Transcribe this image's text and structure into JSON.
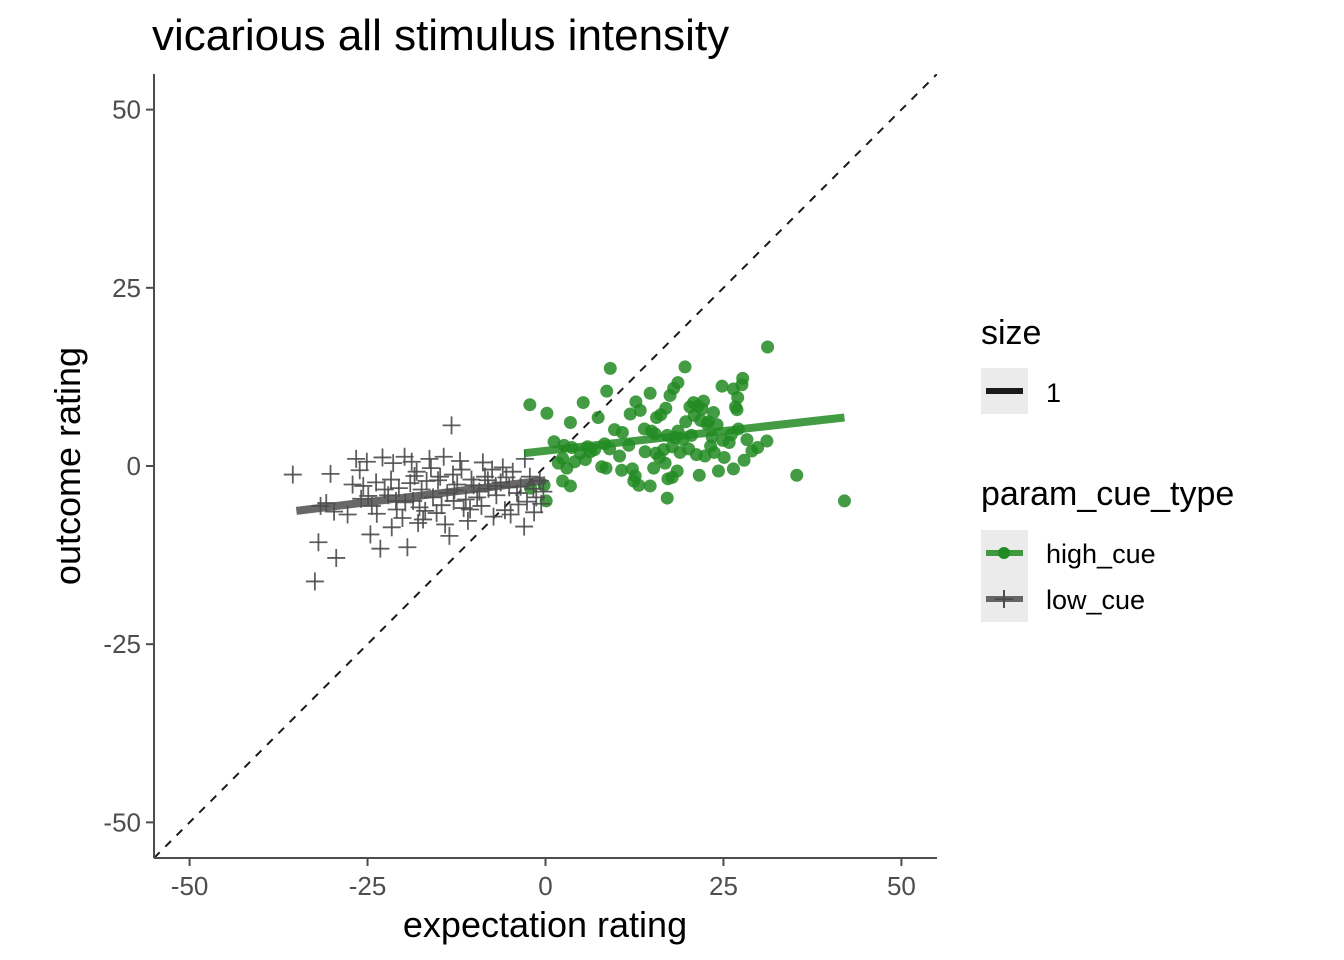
{
  "chart_data": {
    "type": "scatter",
    "title": "vicarious all stimulus intensity",
    "xlabel": "expectation rating",
    "ylabel": "outcome rating",
    "xlim": [
      -55,
      55
    ],
    "ylim": [
      -55,
      55
    ],
    "x_ticks": [
      -50,
      -25,
      0,
      25,
      50
    ],
    "y_ticks": [
      -50,
      -25,
      0,
      25,
      50
    ],
    "x_tick_labels": [
      "-50",
      "-25",
      "0",
      "25",
      "50"
    ],
    "y_tick_labels": [
      "-50",
      "-25",
      "0",
      "25",
      "50"
    ],
    "grid": false,
    "identity_line": true,
    "legend_position": "right",
    "legends": [
      {
        "title": "size",
        "entries": [
          {
            "label": "1",
            "color": "#1a1a1a"
          }
        ]
      },
      {
        "title": "param_cue_type",
        "entries": [
          {
            "label": "high_cue",
            "color": "#228B22",
            "marker": "circle"
          },
          {
            "label": "low_cue",
            "color": "#4d4d4d",
            "marker": "plus"
          }
        ]
      }
    ],
    "series": [
      {
        "name": "high_cue",
        "color": "#228B22",
        "marker": "circle",
        "fit_line": {
          "x": [
            -3,
            42
          ],
          "y": [
            1.8,
            6.8
          ]
        },
        "points": [
          [
            -2.2,
            8.6
          ],
          [
            0.2,
            7.4
          ],
          [
            3.5,
            6.1
          ],
          [
            5.3,
            8.9
          ],
          [
            8.6,
            10.5
          ],
          [
            9.1,
            13.7
          ],
          [
            11.9,
            7.3
          ],
          [
            12.7,
            9.0
          ],
          [
            13.3,
            7.8
          ],
          [
            14.7,
            10.2
          ],
          [
            14.9,
            4.9
          ],
          [
            15.6,
            6.8
          ],
          [
            16.2,
            7.2
          ],
          [
            16.9,
            8.1
          ],
          [
            17.5,
            9.9
          ],
          [
            18.0,
            10.9
          ],
          [
            18.6,
            11.7
          ],
          [
            19.6,
            13.9
          ],
          [
            20.3,
            8.3
          ],
          [
            20.8,
            8.9
          ],
          [
            21.4,
            8.4
          ],
          [
            22.2,
            9.1
          ],
          [
            22.9,
            6.2
          ],
          [
            23.6,
            7.5
          ],
          [
            24.1,
            5.8
          ],
          [
            24.8,
            11.2
          ],
          [
            26.4,
            10.8
          ],
          [
            27.0,
            9.6
          ],
          [
            26.7,
            8.3
          ],
          [
            27.6,
            11.4
          ],
          [
            27.7,
            12.3
          ],
          [
            31.2,
            16.7
          ],
          [
            29.8,
            2.6
          ],
          [
            31.1,
            3.5
          ],
          [
            35.3,
            -1.3
          ],
          [
            42.0,
            -4.9
          ],
          [
            7.4,
            6.8
          ],
          [
            9.7,
            5.1
          ],
          [
            10.8,
            4.7
          ],
          [
            13.9,
            5.2
          ],
          [
            15.4,
            4.5
          ],
          [
            17.1,
            4.3
          ],
          [
            18.6,
            4.9
          ],
          [
            19.7,
            6.2
          ],
          [
            20.9,
            7.1
          ],
          [
            21.8,
            6.4
          ],
          [
            22.7,
            5.9
          ],
          [
            23.4,
            4.1
          ],
          [
            24.9,
            3.6
          ],
          [
            26.1,
            4.4
          ],
          [
            27.1,
            5.2
          ],
          [
            28.3,
            3.7
          ],
          [
            29.0,
            2.1
          ],
          [
            5.9,
            2.7
          ],
          [
            6.9,
            2.3
          ],
          [
            8.3,
            3.1
          ],
          [
            9.0,
            2.4
          ],
          [
            11.7,
            2.9
          ],
          [
            14.0,
            2.0
          ],
          [
            15.5,
            1.8
          ],
          [
            16.6,
            2.3
          ],
          [
            17.8,
            2.7
          ],
          [
            18.9,
            1.9
          ],
          [
            20.1,
            2.4
          ],
          [
            21.2,
            1.6
          ],
          [
            22.4,
            1.4
          ],
          [
            23.7,
            1.9
          ],
          [
            25.1,
            1.2
          ],
          [
            27.9,
            0.8
          ],
          [
            1.2,
            3.4
          ],
          [
            2.6,
            2.9
          ],
          [
            3.7,
            2.6
          ],
          [
            4.9,
            1.8
          ],
          [
            2.4,
            1.1
          ],
          [
            4.1,
            0.6
          ],
          [
            5.6,
            0.9
          ],
          [
            1.8,
            0.4
          ],
          [
            3.0,
            -0.3
          ],
          [
            7.9,
            -0.1
          ],
          [
            8.5,
            -0.3
          ],
          [
            10.7,
            -0.6
          ],
          [
            12.2,
            -0.4
          ],
          [
            15.2,
            -0.3
          ],
          [
            16.8,
            0.4
          ],
          [
            18.5,
            -0.7
          ],
          [
            21.6,
            -1.3
          ],
          [
            24.3,
            -0.7
          ],
          [
            26.4,
            -0.4
          ],
          [
            12.6,
            -1.4
          ],
          [
            13.1,
            -2.7
          ],
          [
            14.7,
            -2.8
          ],
          [
            17.2,
            -1.8
          ],
          [
            17.8,
            -1.6
          ],
          [
            2.4,
            -2.1
          ],
          [
            3.5,
            -2.8
          ],
          [
            -2.1,
            -3.1
          ],
          [
            -0.2,
            -2.7
          ],
          [
            0.1,
            -4.9
          ],
          [
            12.4,
            -2.1
          ],
          [
            17.1,
            -4.5
          ],
          [
            6.3,
            2.0
          ],
          [
            10.4,
            1.4
          ],
          [
            19.3,
            3.7
          ],
          [
            23.2,
            2.8
          ],
          [
            25.8,
            3.3
          ],
          [
            20.5,
            4.3
          ],
          [
            16.0,
            1.2
          ],
          [
            22.0,
            8.0
          ],
          [
            18.2,
            4.0
          ],
          [
            26.9,
            7.9
          ]
        ]
      },
      {
        "name": "low_cue",
        "color": "#4d4d4d",
        "marker": "plus",
        "fit_line": {
          "x": [
            -35,
            0
          ],
          "y": [
            -6.3,
            -2.0
          ]
        },
        "points": [
          [
            -35.5,
            -1.2
          ],
          [
            -30.8,
            -5.2
          ],
          [
            -29.7,
            -6.4
          ],
          [
            -31.9,
            -10.7
          ],
          [
            -29.4,
            -12.9
          ],
          [
            -32.4,
            -16.2
          ],
          [
            -31.6,
            -5.6
          ],
          [
            -30.2,
            -1.1
          ],
          [
            -27.1,
            -2.6
          ],
          [
            -26.1,
            -0.6
          ],
          [
            -25.6,
            -2.8
          ],
          [
            -25.1,
            0.6
          ],
          [
            -24.9,
            -4.2
          ],
          [
            -24.4,
            -5.6
          ],
          [
            -23.7,
            -6.7
          ],
          [
            -23.2,
            -11.6
          ],
          [
            -22.6,
            -3.3
          ],
          [
            -21.7,
            -1.9
          ],
          [
            -21.4,
            0.4
          ],
          [
            -20.9,
            -6.1
          ],
          [
            -20.1,
            -7.3
          ],
          [
            -19.4,
            -11.4
          ],
          [
            -19.0,
            -2.4
          ],
          [
            -18.6,
            -4.9
          ],
          [
            -18.1,
            -0.8
          ],
          [
            -17.7,
            -5.8
          ],
          [
            -17.2,
            -7.5
          ],
          [
            -16.7,
            -2.1
          ],
          [
            -16.1,
            -0.3
          ],
          [
            -15.8,
            -4.4
          ],
          [
            -15.3,
            -6.6
          ],
          [
            -14.8,
            -1.5
          ],
          [
            -14.3,
            1.3
          ],
          [
            -13.8,
            -3.8
          ],
          [
            -13.5,
            -9.8
          ],
          [
            -12.9,
            -4.9
          ],
          [
            -12.4,
            -2.6
          ],
          [
            -11.8,
            -0.5
          ],
          [
            -11.2,
            -4.7
          ],
          [
            -10.6,
            -6.1
          ],
          [
            -10.1,
            -2.7
          ],
          [
            -9.6,
            -4.4
          ],
          [
            -9.0,
            -5.6
          ],
          [
            -8.5,
            -1.5
          ],
          [
            -8.0,
            -3.2
          ],
          [
            -7.5,
            -0.5
          ],
          [
            -6.9,
            -4.1
          ],
          [
            -6.3,
            -2.3
          ],
          [
            -5.7,
            -6.2
          ],
          [
            -5.1,
            -3.0
          ],
          [
            -4.6,
            -0.8
          ],
          [
            -4.0,
            -3.8
          ],
          [
            -3.5,
            -2.9
          ],
          [
            -3.0,
            -8.5
          ],
          [
            -2.6,
            -5.0
          ],
          [
            -2.2,
            -1.5
          ],
          [
            -1.7,
            -3.2
          ],
          [
            -1.3,
            -4.4
          ],
          [
            -0.8,
            -2.1
          ],
          [
            -0.3,
            -3.6
          ],
          [
            -13.2,
            5.7
          ],
          [
            -16.3,
            1.0
          ],
          [
            -19.8,
            1.3
          ],
          [
            -22.9,
            1.2
          ],
          [
            -26.6,
            1.0
          ],
          [
            -18.8,
            0.6
          ],
          [
            -12.0,
            0.7
          ],
          [
            -8.8,
            0.5
          ],
          [
            -6.0,
            -0.2
          ],
          [
            -2.9,
            1.0
          ],
          [
            -1.6,
            -6.5
          ],
          [
            -0.6,
            -5.3
          ],
          [
            -4.9,
            -6.8
          ],
          [
            -7.3,
            -7.1
          ],
          [
            -10.9,
            -7.7
          ],
          [
            -14.1,
            -8.2
          ],
          [
            -17.9,
            -8.0
          ],
          [
            -21.6,
            -8.6
          ],
          [
            -24.6,
            -9.6
          ],
          [
            -27.8,
            -6.8
          ],
          [
            -25.9,
            -4.6
          ],
          [
            -22.1,
            -4.1
          ],
          [
            -19.7,
            -5.1
          ],
          [
            -17.4,
            -3.3
          ],
          [
            -15.1,
            -2.0
          ],
          [
            -12.8,
            -3.4
          ],
          [
            -10.4,
            -1.9
          ],
          [
            -8.1,
            -2.0
          ],
          [
            -5.5,
            -1.6
          ],
          [
            -3.8,
            -5.4
          ],
          [
            -23.8,
            -2.3
          ],
          [
            -20.6,
            -3.1
          ],
          [
            -16.9,
            -6.3
          ],
          [
            -14.6,
            -5.5
          ],
          [
            -11.5,
            -5.9
          ],
          [
            -9.3,
            -3.6
          ],
          [
            -7.0,
            -2.8
          ],
          [
            -21.0,
            -4.9
          ],
          [
            -18.4,
            -1.4
          ],
          [
            -13.0,
            -1.2
          ]
        ]
      }
    ]
  }
}
